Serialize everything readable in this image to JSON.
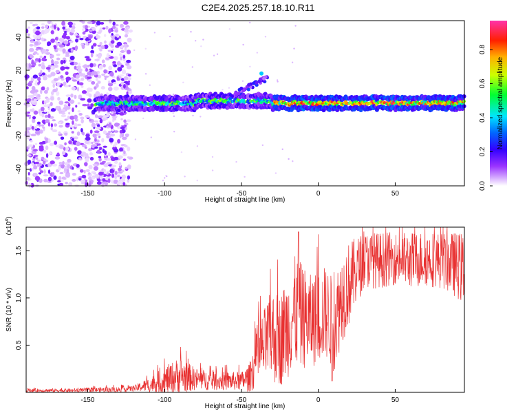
{
  "title": "C2E4.2025.257.18.10.R11",
  "chart_data": [
    {
      "type": "heatmap",
      "title": "C2E4.2025.257.18.10.R11",
      "xlabel": "Height of straight line (km)",
      "ylabel": "Frequency (Hz)",
      "xlim": [
        -190,
        95
      ],
      "ylim": [
        -50,
        50
      ],
      "xticks": [
        -150,
        -100,
        -50,
        0,
        50
      ],
      "yticks": [
        -40,
        -20,
        0,
        20,
        40
      ],
      "colorbar": {
        "label": "Normalized spectral amplitude",
        "range": [
          0,
          0.97
        ],
        "ticks": [
          0.0,
          0.2,
          0.4,
          0.6,
          0.8
        ],
        "colormap": "rainbow (white-purple-blue-cyan-green-yellow-red-magenta)"
      },
      "features": [
        {
          "x_range": [
            -190,
            -122
          ],
          "y_range": [
            -50,
            50
          ],
          "amplitude": "0.0-0.2",
          "note": "scattered noise"
        },
        {
          "x_range": [
            -145,
            95
          ],
          "y_center": 0,
          "y_halfwidth": 4,
          "amplitude": "0.2-0.9",
          "note": "main band"
        },
        {
          "x_range": [
            -58,
            -33
          ],
          "y_range": [
            5,
            20
          ],
          "amplitude": "0.1-0.3",
          "note": "upward branch"
        },
        {
          "x_range": [
            -25,
            95
          ],
          "y_center": -1,
          "amplitude": "0.8-0.97",
          "note": "peak amplitude"
        }
      ]
    },
    {
      "type": "line",
      "xlabel": "Height of straight line (km)",
      "ylabel": "SNR (10 * v/v)",
      "yscale_label": "(x10",
      "yscale_exp": "4",
      "yscale_close": ")",
      "xlim": [
        -190,
        95
      ],
      "ylim": [
        0,
        1.75
      ],
      "xticks": [
        -150,
        -100,
        -50,
        0,
        50
      ],
      "yticks": [
        0.5,
        1.0,
        1.5
      ],
      "ytick_labels": [
        "0.5",
        "1.0",
        "1.5"
      ],
      "color": "#e83030",
      "series": [
        {
          "name": "",
          "x": [
            -190,
            -160,
            -130,
            -120,
            -110,
            -100,
            -90,
            -80,
            -70,
            -60,
            -50,
            -45,
            -40,
            -35,
            -30,
            -25,
            -20,
            -15,
            -10,
            -5,
            0,
            5,
            10,
            15,
            20,
            25,
            30,
            40,
            50,
            60,
            70,
            80,
            90,
            95
          ],
          "y": [
            0.02,
            0.02,
            0.03,
            0.04,
            0.08,
            0.12,
            0.18,
            0.14,
            0.12,
            0.12,
            0.12,
            0.15,
            0.35,
            0.5,
            0.6,
            0.55,
            0.7,
            0.85,
            0.8,
            0.75,
            0.8,
            0.85,
            0.7,
            1.0,
            1.15,
            1.3,
            1.4,
            1.4,
            1.42,
            1.4,
            1.42,
            1.4,
            1.35,
            1.3
          ],
          "spread": [
            0.02,
            0.02,
            0.03,
            0.03,
            0.08,
            0.15,
            0.2,
            0.12,
            0.1,
            0.1,
            0.1,
            0.15,
            0.3,
            0.4,
            0.5,
            0.5,
            0.55,
            0.6,
            0.55,
            0.5,
            0.5,
            0.5,
            0.5,
            0.5,
            0.45,
            0.35,
            0.3,
            0.3,
            0.28,
            0.3,
            0.3,
            0.3,
            0.35,
            0.4
          ]
        }
      ]
    }
  ]
}
